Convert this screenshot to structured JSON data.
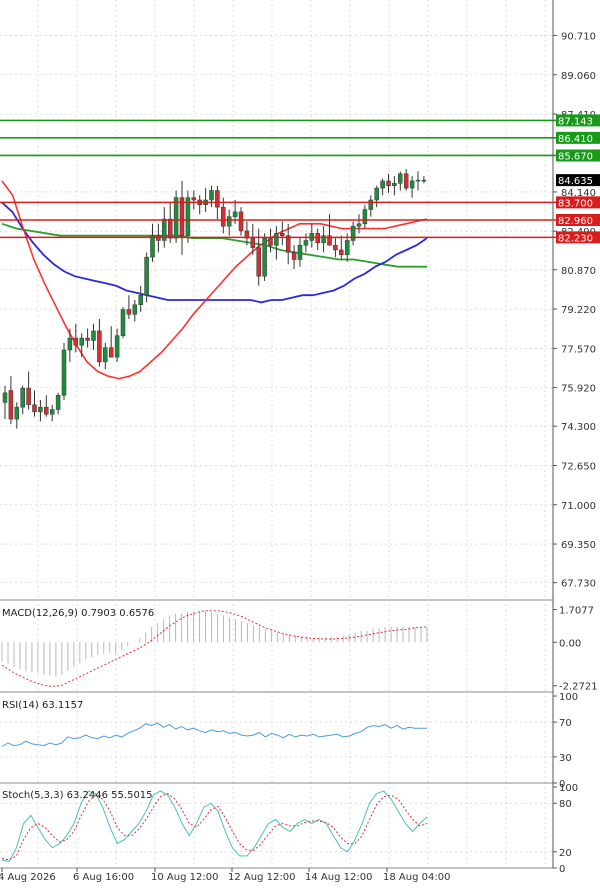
{
  "chart_data": {
    "type": "candlestick",
    "grid": true,
    "colors": {
      "bull": "#1e8e3e",
      "bear": "#d32f2f",
      "ma_fast": "#ff3030",
      "ma_mid": "#2a2ad8",
      "ma_slow": "#2e9d2e",
      "resistance": "#1a9a1a",
      "support": "#d71e1e",
      "rsi": "#4a9be0",
      "stoch_k": "#4bbfbf",
      "stoch_d": "#e03030",
      "macd_signal": "#e03030",
      "macd_hist": "#b8b8b8"
    },
    "price_panel": {
      "ylim": [
        67.0,
        92.2
      ],
      "y_ticks": [
        "90.710",
        "89.060",
        "87.410",
        "85.670",
        "84.140",
        "82.490",
        "80.870",
        "79.220",
        "77.570",
        "75.920",
        "74.300",
        "72.650",
        "71.000",
        "69.350",
        "67.730"
      ],
      "last_price": "84.635",
      "resistance_levels": [
        "87.143",
        "86.410",
        "85.670"
      ],
      "support_levels": [
        "83.700",
        "82.960",
        "82.230"
      ],
      "candles": [
        [
          75.3,
          76.0,
          74.6,
          75.7
        ],
        [
          75.8,
          76.4,
          74.4,
          74.6
        ],
        [
          74.6,
          75.3,
          74.2,
          75.1
        ],
        [
          75.1,
          76.0,
          74.8,
          75.9
        ],
        [
          75.9,
          76.6,
          75.0,
          75.2
        ],
        [
          75.2,
          75.8,
          74.7,
          74.9
        ],
        [
          74.9,
          75.4,
          74.5,
          75.1
        ],
        [
          75.1,
          75.6,
          74.7,
          74.8
        ],
        [
          74.8,
          75.2,
          74.5,
          75.0
        ],
        [
          75.0,
          75.7,
          74.8,
          75.6
        ],
        [
          75.6,
          77.8,
          75.4,
          77.5
        ],
        [
          77.5,
          78.4,
          77.0,
          78.0
        ],
        [
          78.0,
          78.6,
          77.4,
          77.7
        ],
        [
          77.7,
          78.2,
          77.2,
          78.0
        ],
        [
          78.0,
          78.4,
          77.6,
          77.9
        ],
        [
          77.9,
          78.6,
          77.5,
          78.3
        ],
        [
          78.3,
          78.8,
          76.8,
          77.0
        ],
        [
          77.0,
          77.8,
          76.7,
          77.6
        ],
        [
          77.6,
          78.5,
          77.3,
          77.2
        ],
        [
          77.2,
          78.4,
          77.0,
          78.1
        ],
        [
          78.1,
          79.3,
          78.0,
          79.2
        ],
        [
          79.2,
          79.8,
          78.8,
          79.0
        ],
        [
          79.0,
          79.6,
          78.7,
          79.4
        ],
        [
          79.4,
          80.2,
          79.1,
          79.8
        ],
        [
          79.8,
          81.6,
          79.5,
          81.4
        ],
        [
          81.4,
          82.8,
          81.2,
          82.3
        ],
        [
          82.3,
          82.8,
          81.6,
          82.1
        ],
        [
          82.1,
          83.5,
          81.8,
          83.0
        ],
        [
          83.0,
          83.7,
          82.0,
          82.2
        ],
        [
          82.2,
          84.2,
          82.0,
          83.9
        ],
        [
          83.9,
          84.6,
          81.5,
          82.3
        ],
        [
          82.3,
          84.2,
          82.0,
          83.9
        ],
        [
          83.9,
          84.2,
          83.4,
          83.8
        ],
        [
          83.8,
          84.0,
          83.2,
          83.6
        ],
        [
          83.6,
          84.3,
          83.3,
          83.8
        ],
        [
          83.8,
          84.4,
          83.5,
          84.2
        ],
        [
          84.2,
          84.4,
          83.0,
          83.5
        ],
        [
          83.5,
          83.9,
          82.4,
          82.7
        ],
        [
          82.7,
          83.4,
          82.3,
          83.1
        ],
        [
          83.1,
          83.8,
          82.8,
          83.3
        ],
        [
          83.3,
          83.5,
          82.3,
          82.5
        ],
        [
          82.5,
          82.9,
          81.9,
          82.2
        ],
        [
          82.2,
          82.8,
          81.5,
          81.8
        ],
        [
          81.8,
          82.6,
          80.2,
          80.6
        ],
        [
          80.6,
          82.4,
          80.4,
          82.2
        ],
        [
          82.2,
          82.6,
          81.6,
          81.9
        ],
        [
          81.9,
          82.7,
          81.3,
          82.4
        ],
        [
          82.4,
          82.9,
          81.9,
          82.3
        ],
        [
          82.3,
          82.8,
          81.1,
          81.6
        ],
        [
          81.6,
          81.9,
          80.9,
          81.3
        ],
        [
          81.3,
          82.2,
          81.0,
          81.9
        ],
        [
          81.9,
          82.4,
          81.6,
          82.1
        ],
        [
          82.1,
          82.8,
          81.8,
          82.4
        ],
        [
          82.4,
          82.6,
          81.7,
          82.0
        ],
        [
          82.0,
          82.7,
          81.6,
          82.3
        ],
        [
          82.3,
          83.2,
          81.9,
          81.9
        ],
        [
          81.9,
          82.2,
          81.4,
          81.7
        ],
        [
          81.7,
          82.3,
          81.3,
          81.5
        ],
        [
          81.5,
          82.4,
          81.2,
          82.1
        ],
        [
          82.1,
          82.9,
          81.9,
          82.7
        ],
        [
          82.7,
          83.2,
          82.4,
          82.8
        ],
        [
          82.8,
          83.6,
          82.6,
          83.4
        ],
        [
          83.4,
          84.0,
          83.1,
          83.8
        ],
        [
          83.8,
          84.4,
          83.5,
          84.3
        ],
        [
          84.3,
          84.7,
          84.0,
          84.6
        ],
        [
          84.6,
          84.9,
          84.1,
          84.4
        ],
        [
          84.4,
          84.8,
          84.0,
          84.5
        ],
        [
          84.5,
          85.0,
          84.2,
          84.9
        ],
        [
          84.9,
          85.1,
          84.2,
          84.3
        ],
        [
          84.3,
          84.8,
          83.9,
          84.6
        ],
        [
          84.6,
          85.0,
          84.2,
          84.635
        ],
        [
          84.635,
          84.8,
          84.5,
          84.635
        ]
      ],
      "ma_fast": [
        84.6,
        84.0,
        82.6,
        81.3,
        80.3,
        79.4,
        78.5,
        77.7,
        77.0,
        76.6,
        76.4,
        76.3,
        76.4,
        76.6,
        77.0,
        77.4,
        77.9,
        78.4,
        79.0,
        79.5,
        80.0,
        80.5,
        81.0,
        81.4,
        81.8,
        82.1,
        82.4,
        82.6,
        82.8,
        82.8,
        82.8,
        82.7,
        82.6,
        82.6,
        82.6,
        82.6,
        82.6,
        82.7,
        82.8,
        82.9,
        83.0
      ],
      "ma_mid": [
        83.7,
        83.3,
        82.6,
        82.0,
        81.5,
        81.1,
        80.8,
        80.6,
        80.5,
        80.4,
        80.3,
        80.2,
        80.0,
        79.9,
        79.8,
        79.7,
        79.6,
        79.6,
        79.6,
        79.6,
        79.6,
        79.6,
        79.6,
        79.6,
        79.6,
        79.5,
        79.6,
        79.6,
        79.7,
        79.8,
        79.8,
        79.9,
        80.0,
        80.2,
        80.5,
        80.7,
        81.0,
        81.2,
        81.5,
        81.7,
        81.9,
        82.2
      ],
      "ma_slow": [
        82.8,
        82.6,
        82.5,
        82.4,
        82.3,
        82.3,
        82.3,
        82.3,
        82.3,
        82.3,
        82.3,
        82.3,
        82.3,
        82.2,
        82.2,
        82.2,
        82.1,
        82.0,
        81.9,
        81.7,
        81.6,
        81.5,
        81.4,
        81.3,
        81.3,
        81.2,
        81.1,
        81.0,
        81.0,
        81.0
      ]
    },
    "macd_panel": {
      "label": "MACD(12,26,9) 0.7903 0.6576",
      "ylim": [
        -2.6,
        2.0
      ],
      "y_ticks": [
        "1.7077",
        "0.00",
        "-2.2721"
      ],
      "histogram": [
        -1.0,
        -1.1,
        -1.3,
        -1.4,
        -1.5,
        -1.55,
        -1.6,
        -1.7,
        -1.75,
        -1.8,
        -1.7,
        -1.5,
        -1.3,
        -1.1,
        -0.9,
        -0.8,
        -0.65,
        -0.6,
        -0.55,
        -0.6,
        -0.4,
        -0.2,
        0.0,
        0.2,
        0.5,
        0.8,
        1.0,
        1.2,
        1.4,
        1.5,
        1.5,
        1.6,
        1.6,
        1.6,
        1.6,
        1.55,
        1.5,
        1.4,
        1.3,
        1.2,
        1.1,
        1.0,
        0.9,
        0.8,
        0.7,
        0.6,
        0.5,
        0.45,
        0.4,
        0.35,
        0.3,
        0.3,
        0.25,
        0.25,
        0.25,
        0.3,
        0.3,
        0.35,
        0.4,
        0.5,
        0.6,
        0.6,
        0.7,
        0.75,
        0.8,
        0.8,
        0.8,
        0.8,
        0.8,
        0.8,
        0.8,
        0.8
      ],
      "signal": [
        -1.2,
        -1.4,
        -1.6,
        -1.75,
        -1.9,
        -2.05,
        -2.15,
        -2.25,
        -2.3,
        -2.3,
        -2.25,
        -2.1,
        -1.95,
        -1.8,
        -1.65,
        -1.5,
        -1.35,
        -1.2,
        -1.05,
        -0.9,
        -0.75,
        -0.6,
        -0.45,
        -0.3,
        -0.1,
        0.1,
        0.35,
        0.6,
        0.85,
        1.05,
        1.25,
        1.4,
        1.5,
        1.6,
        1.65,
        1.65,
        1.65,
        1.6,
        1.55,
        1.45,
        1.35,
        1.2,
        1.05,
        0.9,
        0.75,
        0.65,
        0.55,
        0.45,
        0.38,
        0.32,
        0.27,
        0.23,
        0.2,
        0.18,
        0.17,
        0.17,
        0.18,
        0.2,
        0.23,
        0.27,
        0.32,
        0.38,
        0.44,
        0.5,
        0.55,
        0.6,
        0.64,
        0.66,
        0.7,
        0.75,
        0.78,
        0.8
      ]
    },
    "rsi_panel": {
      "label": "RSI(14) 63.1157",
      "ylim": [
        0,
        100
      ],
      "y_ticks": [
        "100",
        "70",
        "30",
        "0"
      ],
      "values": [
        42,
        46,
        43,
        44,
        48,
        45,
        44,
        43,
        46,
        44,
        46,
        53,
        51,
        52,
        55,
        52,
        51,
        54,
        52,
        55,
        53,
        57,
        60,
        63,
        68,
        66,
        69,
        64,
        67,
        62,
        65,
        61,
        63,
        60,
        58,
        61,
        59,
        60,
        57,
        58,
        55,
        54,
        55,
        58,
        53,
        57,
        55,
        52,
        56,
        53,
        55,
        54,
        56,
        53,
        54,
        55,
        56,
        53,
        54,
        57,
        59,
        64,
        66,
        65,
        67,
        63,
        66,
        62,
        64,
        63,
        63,
        63
      ]
    },
    "stoch_panel": {
      "label": "Stoch(5,3,3) 63.2446 55.5015",
      "ylim": [
        0,
        100
      ],
      "y_ticks": [
        "100",
        "80",
        "20",
        "0"
      ],
      "k": [
        10,
        8,
        25,
        55,
        65,
        50,
        35,
        25,
        30,
        40,
        55,
        80,
        95,
        92,
        75,
        50,
        30,
        35,
        45,
        55,
        70,
        90,
        95,
        90,
        75,
        55,
        40,
        55,
        75,
        80,
        70,
        45,
        25,
        15,
        15,
        25,
        40,
        55,
        60,
        50,
        45,
        55,
        60,
        55,
        60,
        55,
        40,
        25,
        20,
        35,
        55,
        80,
        92,
        95,
        85,
        70,
        55,
        45,
        55,
        63
      ],
      "d": [
        12,
        10,
        15,
        35,
        50,
        55,
        50,
        40,
        32,
        35,
        45,
        65,
        82,
        90,
        85,
        70,
        50,
        40,
        40,
        48,
        60,
        75,
        88,
        92,
        85,
        72,
        55,
        50,
        60,
        72,
        76,
        62,
        45,
        30,
        22,
        22,
        30,
        42,
        52,
        55,
        52,
        52,
        56,
        58,
        58,
        56,
        50,
        38,
        30,
        30,
        40,
        60,
        78,
        88,
        90,
        85,
        72,
        60,
        52,
        55
      ]
    },
    "x_axis": {
      "tick_labels": [
        "4 Aug 2026",
        "6 Aug 16:00",
        "10 Aug 12:00",
        "12 Aug 12:00",
        "14 Aug 12:00",
        "18 Aug 04:00"
      ]
    }
  }
}
